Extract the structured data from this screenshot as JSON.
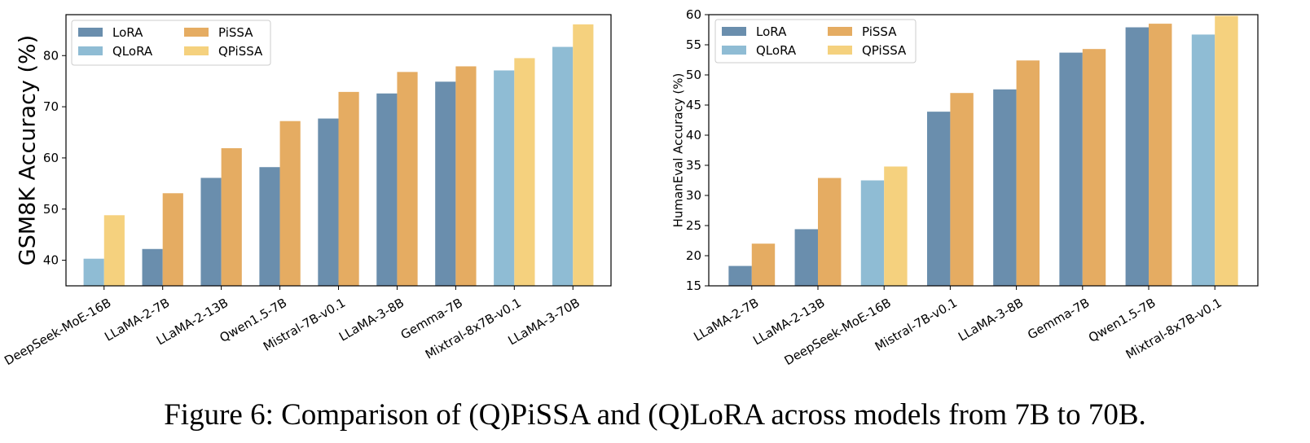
{
  "caption": "Figure 6: Comparison of (Q)PiSSA and (Q)LoRA across models from 7B to 70B.",
  "colors": {
    "LoRA": "#6a8ead",
    "QLoRA": "#8fbcd4",
    "PiSSA": "#e5ac62",
    "QPiSSA": "#f5d17e"
  },
  "chart_data": [
    {
      "type": "bar",
      "ylabel": "GSM8K Accuracy (%)",
      "ylim": [
        35,
        88
      ],
      "yticks": [
        40,
        50,
        60,
        70,
        80
      ],
      "legend": {
        "placement": "top-left",
        "entries": [
          "LoRA",
          "PiSSA",
          "QLoRA",
          "QPiSSA"
        ]
      },
      "grid": false,
      "categories": [
        "DeepSeek-MoE-16B",
        "LLaMA-2-7B",
        "LLaMA-2-13B",
        "Qwen1.5-7B",
        "Mistral-7B-v0.1",
        "LLaMA-3-8B",
        "Gemma-7B",
        "Mixtral-8x7B-v0.1",
        "LLaMA-3-70B"
      ],
      "baseline": {
        "methods": [
          "QLoRA",
          "LoRA",
          "LoRA",
          "LoRA",
          "LoRA",
          "LoRA",
          "LoRA",
          "QLoRA",
          "QLoRA"
        ],
        "values": [
          40.3,
          42.2,
          56.1,
          58.2,
          67.7,
          72.6,
          74.9,
          77.1,
          81.7
        ]
      },
      "proposed": {
        "methods": [
          "QPiSSA",
          "PiSSA",
          "PiSSA",
          "PiSSA",
          "PiSSA",
          "PiSSA",
          "PiSSA",
          "QPiSSA",
          "QPiSSA"
        ],
        "values": [
          48.8,
          53.1,
          61.9,
          67.2,
          72.9,
          76.8,
          77.9,
          79.5,
          86.1
        ]
      }
    },
    {
      "type": "bar",
      "ylabel": "HumanEval Accuracy (%)",
      "ylim": [
        15,
        60
      ],
      "yticks": [
        15,
        20,
        25,
        30,
        35,
        40,
        45,
        50,
        55,
        60
      ],
      "legend": {
        "placement": "top-left",
        "entries": [
          "LoRA",
          "PiSSA",
          "QLoRA",
          "QPiSSA"
        ]
      },
      "grid": false,
      "categories": [
        "LLaMA-2-7B",
        "LLaMA-2-13B",
        "DeepSeek-MoE-16B",
        "Mistral-7B-v0.1",
        "LLaMA-3-8B",
        "Gemma-7B",
        "Qwen1.5-7B",
        "Mixtral-8x7B-v0.1"
      ],
      "baseline": {
        "methods": [
          "LoRA",
          "LoRA",
          "QLoRA",
          "LoRA",
          "LoRA",
          "LoRA",
          "LoRA",
          "QLoRA"
        ],
        "values": [
          18.3,
          24.4,
          32.5,
          43.9,
          47.6,
          53.7,
          57.9,
          56.7
        ]
      },
      "proposed": {
        "methods": [
          "PiSSA",
          "PiSSA",
          "QPiSSA",
          "PiSSA",
          "PiSSA",
          "PiSSA",
          "PiSSA",
          "QPiSSA"
        ],
        "values": [
          22.0,
          32.9,
          34.8,
          47.0,
          52.4,
          54.3,
          58.5,
          59.8
        ]
      }
    }
  ]
}
